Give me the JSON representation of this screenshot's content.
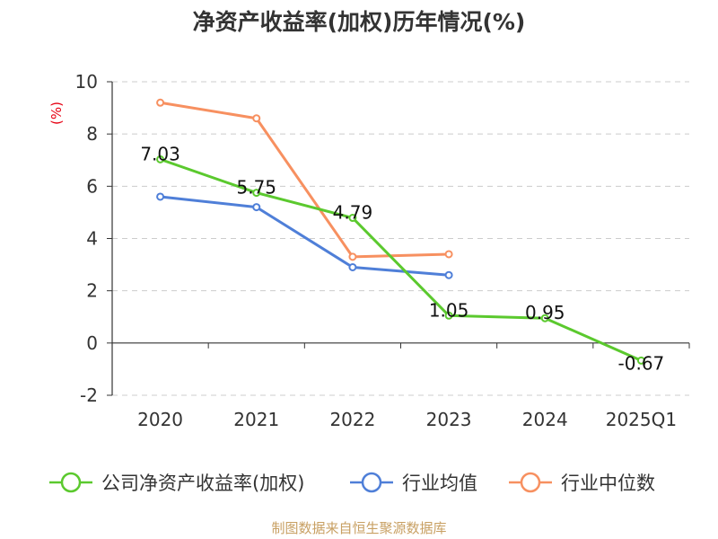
{
  "chart_data": {
    "type": "line",
    "title": "净资产收益率(加权)历年情况(%)",
    "ylabel": "(%)",
    "categories": [
      "2020",
      "2021",
      "2022",
      "2023",
      "2024",
      "2025Q1"
    ],
    "ylim": [
      -2,
      10
    ],
    "yticks": [
      -2,
      0,
      2,
      4,
      6,
      8,
      10
    ],
    "grid": true,
    "legend_position": "bottom",
    "series": [
      {
        "name": "公司净资产收益率(加权)",
        "color": "#5bc92e",
        "values": [
          7.03,
          5.75,
          4.79,
          1.05,
          0.95,
          -0.67
        ],
        "labels": [
          "7.03",
          "5.75",
          "4.79",
          "1.05",
          "0.95",
          "-0.67"
        ]
      },
      {
        "name": "行业均值",
        "color": "#4f7fd8",
        "values": [
          5.6,
          5.2,
          2.9,
          2.6,
          null,
          null
        ]
      },
      {
        "name": "行业中位数",
        "color": "#f79060",
        "values": [
          9.2,
          8.6,
          3.3,
          3.4,
          null,
          null
        ]
      }
    ]
  },
  "footer": {
    "source": "制图数据来自恒生聚源数据库"
  }
}
